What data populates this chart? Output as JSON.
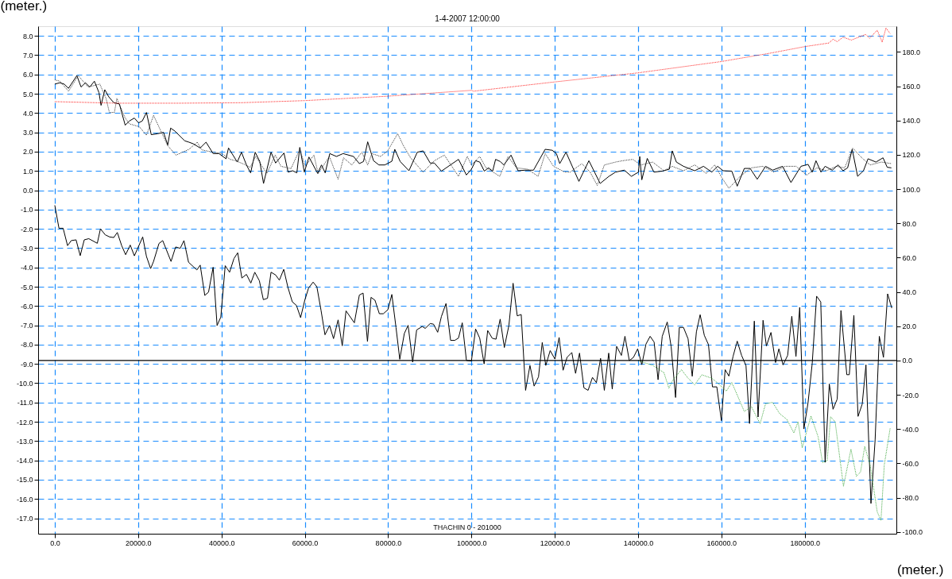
{
  "chart_data": {
    "type": "line",
    "title": "1-4-2007 12:00:00",
    "xlabel": "(meter.)",
    "ylabel": "(meter.)",
    "annotations": [
      "THACHIN 0 - 201000"
    ],
    "xlim": [
      -4000,
      202000
    ],
    "ylim": [
      -17.8,
      8.5
    ],
    "y2lim": [
      -101,
      195
    ],
    "xticks": [
      {
        "value": 0,
        "label": "0.0"
      },
      {
        "value": 20000,
        "label": "20000.0"
      },
      {
        "value": 40000,
        "label": "40000.0"
      },
      {
        "value": 60000,
        "label": "60000.0"
      },
      {
        "value": 80000,
        "label": "80000.0"
      },
      {
        "value": 100000,
        "label": "100000.0"
      },
      {
        "value": 120000,
        "label": "120000.0"
      },
      {
        "value": 140000,
        "label": "140000.0"
      },
      {
        "value": 160000,
        "label": "160000.0"
      },
      {
        "value": 180000,
        "label": "180000.0"
      }
    ],
    "yticks": [
      {
        "value": -17,
        "label": "-17.0"
      },
      {
        "value": -16,
        "label": "-16.0"
      },
      {
        "value": -15,
        "label": "-15.0"
      },
      {
        "value": -14,
        "label": "-14.0"
      },
      {
        "value": -13,
        "label": "-13.0"
      },
      {
        "value": -12,
        "label": "-12.0"
      },
      {
        "value": -11,
        "label": "-11.0"
      },
      {
        "value": -10,
        "label": "-10.0"
      },
      {
        "value": -9,
        "label": "-9.0"
      },
      {
        "value": -8,
        "label": "-8.0"
      },
      {
        "value": -7,
        "label": "-7.0"
      },
      {
        "value": -6,
        "label": "-6.0"
      },
      {
        "value": -5,
        "label": "-5.0"
      },
      {
        "value": -4,
        "label": "-4.0"
      },
      {
        "value": -3,
        "label": "-3.0"
      },
      {
        "value": -2,
        "label": "-2.0"
      },
      {
        "value": -1,
        "label": "-1.0"
      },
      {
        "value": 0,
        "label": "0.0"
      },
      {
        "value": 1,
        "label": "1.0"
      },
      {
        "value": 2,
        "label": "2.0"
      },
      {
        "value": 3,
        "label": "3.0"
      },
      {
        "value": 4,
        "label": "4.0"
      },
      {
        "value": 5,
        "label": "5.0"
      },
      {
        "value": 6,
        "label": "6.0"
      },
      {
        "value": 7,
        "label": "7.0"
      },
      {
        "value": 8,
        "label": "8.0"
      }
    ],
    "y2ticks": [
      {
        "value": -100,
        "label": "-100.0"
      },
      {
        "value": -80,
        "label": "-80.0"
      },
      {
        "value": -60,
        "label": "-60.0"
      },
      {
        "value": -40,
        "label": "-40.0"
      },
      {
        "value": -20,
        "label": "-20.0"
      },
      {
        "value": 0,
        "label": "0.0"
      },
      {
        "value": 20,
        "label": "20.0"
      },
      {
        "value": 40,
        "label": "40.0"
      },
      {
        "value": 60,
        "label": "60.0"
      },
      {
        "value": 80,
        "label": "80.0"
      },
      {
        "value": 100,
        "label": "100.0"
      },
      {
        "value": 120,
        "label": "120.0"
      },
      {
        "value": 140,
        "label": "140.0"
      },
      {
        "value": 160,
        "label": "160.0"
      },
      {
        "value": 180,
        "label": "180.0"
      }
    ],
    "grid": true,
    "ref_lines": [
      {
        "axis": "y2",
        "value": 0,
        "color": "#000000"
      }
    ],
    "series": [
      {
        "color": "#000000",
        "line_style": "solid",
        "x": [
          0,
          1000,
          2000,
          3060,
          3950,
          5100,
          6100,
          7070,
          8160,
          10200,
          10950,
          12100,
          13150,
          14150,
          15000,
          16050,
          17000,
          18100,
          19100,
          21100,
          22000,
          23000,
          23700,
          25000,
          25900,
          27900,
          29000,
          30100,
          31000,
          32100,
          34100,
          34900,
          36000,
          36900,
          38000,
          38950,
          39850,
          40900,
          41950,
          43000,
          43900,
          44900,
          46000,
          47050,
          48000,
          49100,
          50050,
          51050,
          51900,
          53000,
          53900,
          54950,
          55950,
          57000,
          58000,
          59000,
          60000,
          60900,
          62000,
          62900,
          63900,
          64850,
          65950,
          66900,
          68000,
          69000,
          69900,
          71900,
          73100,
          74000,
          75050,
          75900,
          76850,
          77900,
          78850,
          79950,
          80900,
          81900,
          82800,
          83900,
          84800,
          85900,
          86850,
          88200,
          88900,
          90100,
          90900,
          91900,
          92800,
          93900,
          95000,
          96000,
          96900,
          97800,
          98800,
          100000,
          101000,
          102000,
          103050,
          103900,
          105000,
          105900,
          106900,
          107900,
          109000,
          110000,
          111000,
          111950,
          113000,
          114050,
          115050,
          116100,
          117000,
          117850,
          118900,
          120050,
          121050,
          122000,
          122950,
          124100,
          125000,
          125950,
          127000,
          128000,
          129050,
          130000,
          131000,
          131900,
          132950,
          133800,
          134850,
          136000,
          136850,
          137900,
          138900,
          139900,
          140900,
          141900,
          142900,
          143850,
          144800,
          145800,
          147000,
          147950,
          149000,
          149900,
          150900,
          152000,
          153000,
          154000,
          154900,
          155900,
          156900,
          157850,
          158900,
          160000,
          160900,
          161800,
          162800,
          163800,
          164850,
          165900,
          166750,
          167900,
          168800,
          170000,
          170800,
          171900,
          173000,
          173800,
          174800,
          175900,
          176900,
          177900,
          178800,
          179800,
          180800,
          181800,
          182850,
          183850,
          184900,
          185900,
          186800,
          187800,
          188700,
          190100,
          190700,
          191800,
          192800,
          193800,
          194700,
          195900,
          196900,
          197900,
          198900,
          199900,
          200900
        ],
        "values": [
          -0.78,
          -1.97,
          -1.97,
          -2.87,
          -2.61,
          -2.57,
          -3.39,
          -2.57,
          -2.51,
          -2.75,
          -2.0,
          -2.31,
          -2.42,
          -2.45,
          -2.19,
          -2.87,
          -3.34,
          -2.84,
          -3.4,
          -2.42,
          -3.43,
          -4.06,
          -3.69,
          -2.76,
          -2.61,
          -3.69,
          -2.94,
          -3.01,
          -2.61,
          -3.73,
          -4.13,
          -3.88,
          -5.45,
          -5.28,
          -3.99,
          -7.01,
          -6.57,
          -3.91,
          -4.25,
          -3.54,
          -3.24,
          -4.55,
          -4.36,
          -4.81,
          -4.25,
          -4.69,
          -5.67,
          -5.6,
          -4.25,
          -4.39,
          -4.66,
          -4.1,
          -5.03,
          -5.78,
          -5.97,
          -6.6,
          -5.7,
          -5.07,
          -4.76,
          -5.0,
          -6.22,
          -7.49,
          -7.01,
          -7.69,
          -6.72,
          -8.06,
          -6.25,
          -6.87,
          -5.43,
          -5.33,
          -7.84,
          -5.55,
          -5.7,
          -6.4,
          -6.4,
          -6.19,
          -5.4,
          -7.12,
          -8.76,
          -7.42,
          -7.0,
          -8.91,
          -7.24,
          -7.06,
          -7.16,
          -6.91,
          -6.94,
          -7.36,
          -6.54,
          -5.87,
          -7.78,
          -7.78,
          -7.66,
          -6.87,
          -8.82,
          -8.85,
          -7.19,
          -7.67,
          -9.0,
          -7.27,
          -7.67,
          -7.72,
          -6.68,
          -8.15,
          -7.0,
          -4.82,
          -6.51,
          -6.44,
          -10.37,
          -9.08,
          -10.15,
          -9.67,
          -7.89,
          -9.08,
          -8.31,
          -8.75,
          -7.63,
          -9.33,
          -8.66,
          -8.41,
          -9.49,
          -8.44,
          -10.24,
          -10.37,
          -9.7,
          -9.97,
          -8.71,
          -10.37,
          -8.44,
          -10.3,
          -8.09,
          -8.56,
          -7.57,
          -8.83,
          -8.66,
          -8.22,
          -9.04,
          -7.97,
          -7.57,
          -7.87,
          -9.82,
          -7.57,
          -6.83,
          -8.12,
          -10.74,
          -7.11,
          -7.11,
          -7.7,
          -9.64,
          -7.34,
          -6.45,
          -7.52,
          -8.0,
          -10.19,
          -10.19,
          -11.94,
          -9.3,
          -9.63,
          -8.61,
          -7.82,
          -8.56,
          -9.08,
          -12.09,
          -6.78,
          -11.75,
          -6.74,
          -8.07,
          -7.37,
          -8.93,
          -8.22,
          -9.05,
          -8.56,
          -6.53,
          -8.61,
          -6.07,
          -12.37,
          -11.01,
          -8.97,
          -5.49,
          -5.79,
          -14.1,
          -10.04,
          -11.35,
          -10.82,
          -6.23,
          -9.56,
          -9.56,
          -6.48,
          -11.72,
          -11.08,
          -9.05,
          -16.23,
          -12.94,
          -7.57,
          -8.66,
          -5.37,
          -6.11
        ]
      },
      {
        "color": "#000000",
        "line_style": "solid",
        "x": [
          0,
          1200,
          2250,
          3270,
          5300,
          6300,
          7350,
          8400,
          9500,
          10600,
          11100,
          12000,
          12950,
          14150,
          15500,
          16900,
          17900,
          19100,
          20100,
          21000,
          22000,
          23150,
          24700,
          26100,
          27100,
          27800,
          28800,
          31200,
          32200,
          33200,
          34900,
          36300,
          38000,
          39400,
          41100,
          41700,
          43800,
          44800,
          46000,
          47000,
          48100,
          49200,
          50100,
          51900,
          53000,
          55000,
          56000,
          57100,
          58100,
          58800,
          59900,
          61000,
          63100,
          64000,
          64900,
          66000,
          67600,
          69200,
          71700,
          73100,
          74100,
          75100,
          76500,
          77800,
          79200,
          80900,
          81600,
          82900,
          85000,
          87000,
          88400,
          90100,
          91100,
          92800,
          96900,
          98800,
          100000,
          101000,
          102000,
          103100,
          104100,
          105100,
          105800,
          106900,
          107800,
          109500,
          111200,
          112900,
          114900,
          117700,
          119400,
          120400,
          121200,
          122700,
          125800,
          128200,
          130900,
          133000,
          134600,
          136700,
          138400,
          140100,
          140400,
          140900,
          142200,
          143800,
          145800,
          147500,
          148200,
          149200,
          150900,
          153600,
          155700,
          157700,
          159100,
          160400,
          162500,
          163800,
          165500,
          166900,
          168600,
          170600,
          172300,
          174700,
          176700,
          179100,
          180800,
          181800,
          182700,
          183900,
          184900,
          186600,
          188000,
          189200,
          190300,
          191400,
          192700,
          194100,
          195200,
          197100,
          198800,
          199800,
          200800
        ],
        "values": [
          5.5,
          5.57,
          5.5,
          5.28,
          5.94,
          5.35,
          5.57,
          5.35,
          5.65,
          5.06,
          4.4,
          5.21,
          4.84,
          4.54,
          4.47,
          3.37,
          3.59,
          3.74,
          3.49,
          3.59,
          4.03,
          2.88,
          2.93,
          3.0,
          2.34,
          3.22,
          3.07,
          2.56,
          2.49,
          2.41,
          2.19,
          2.49,
          1.9,
          1.9,
          1.63,
          2.19,
          1.46,
          1.97,
          1.31,
          0.9,
          1.97,
          1.49,
          0.35,
          1.97,
          1.41,
          1.93,
          0.94,
          1.01,
          0.9,
          2.22,
          0.94,
          1.72,
          0.87,
          1.31,
          0.9,
          1.9,
          1.75,
          1.9,
          1.75,
          1.38,
          1.49,
          2.51,
          1.53,
          1.31,
          1.31,
          1.5,
          2.12,
          1.49,
          1.01,
          1.97,
          2.04,
          1.41,
          1.41,
          0.99,
          1.6,
          0.79,
          1.09,
          1.53,
          1.46,
          0.99,
          1.16,
          0.99,
          1.6,
          1.49,
          1.31,
          1.82,
          1.01,
          1.04,
          1.04,
          2.12,
          2.07,
          1.9,
          1.38,
          1.97,
          0.46,
          1.53,
          0.35,
          0.72,
          0.94,
          1.04,
          0.72,
          0.94,
          1.75,
          0.54,
          1.65,
          0.94,
          0.99,
          1.09,
          2.04,
          1.46,
          1.24,
          1.01,
          1.24,
          0.94,
          1.24,
          1.01,
          0.99,
          0.21,
          1.13,
          1.13,
          0.57,
          1.24,
          1.04,
          1.24,
          0.4,
          1.24,
          1.34,
          0.94,
          1.53,
          0.94,
          1.24,
          1.04,
          1.31,
          1.01,
          1.16,
          2.12,
          0.72,
          1.01,
          1.63,
          1.46,
          1.68,
          1.19,
          1.16
        ]
      },
      {
        "color": "#333333",
        "line_style": "dotted",
        "x": [
          0,
          1200,
          3300,
          5600,
          8000,
          10800,
          12300,
          13100,
          14300,
          14900,
          16900,
          17900,
          20300,
          22000,
          23700,
          27100,
          29100,
          32200,
          34200,
          35300,
          38000,
          40100,
          42100,
          43400,
          45500,
          46900,
          48200,
          50900,
          52900,
          54300,
          56700,
          58800,
          60100,
          62200,
          63200,
          65900,
          68000,
          69300,
          71300,
          73700,
          75100,
          76100,
          78200,
          79900,
          82300,
          83600,
          85400,
          88400,
          91100,
          93500,
          96900,
          99000,
          100000,
          102000,
          103400,
          106800,
          108800,
          110800,
          113500,
          116000,
          117700,
          119700,
          122400,
          123700,
          126500,
          128500,
          130200,
          131900,
          134600,
          136300,
          138700,
          140700,
          143500,
          146200,
          148200,
          150900,
          153600,
          156400,
          158400,
          160100,
          161800,
          164500,
          167200,
          169900,
          172600,
          175300,
          177900,
          180500,
          182900,
          185200,
          187600,
          189600,
          191500,
          193700,
          195700,
          198400,
          200800
        ],
        "values": [
          5.72,
          5.65,
          5.13,
          5.94,
          5.35,
          5.5,
          4.76,
          4.03,
          4.03,
          4.76,
          3.74,
          3.44,
          3.29,
          2.85,
          3.88,
          2.31,
          1.82,
          2.12,
          2.49,
          2.09,
          1.97,
          1.9,
          1.6,
          1.53,
          1.34,
          1.19,
          1.75,
          0.87,
          1.82,
          1.24,
          1.12,
          2.12,
          1.24,
          1.82,
          0.87,
          1.75,
          0.57,
          1.68,
          1.31,
          1.97,
          1.31,
          1.9,
          1.75,
          2.04,
          2.93,
          2.34,
          1.68,
          0.94,
          1.53,
          1.82,
          0.72,
          1.75,
          1.31,
          1.75,
          1.19,
          0.72,
          1.75,
          1.16,
          1.09,
          0.72,
          1.9,
          1.24,
          0.94,
          0.94,
          1.38,
          0.94,
          0.25,
          1.31,
          1.46,
          1.53,
          1.6,
          1.31,
          1.46,
          1.01,
          1.24,
          1.01,
          1.31,
          0.87,
          1.31,
          0.65,
          0.1,
          0.72,
          1.16,
          1.24,
          0.94,
          1.24,
          1.24,
          0.79,
          1.16,
          1.01,
          1.24,
          1.16,
          2.19,
          1.68,
          1.31,
          1.46,
          1.38
        ]
      },
      {
        "color": "#ff2020",
        "line_style": "dotted",
        "axis": "y2",
        "x": [
          0,
          15000,
          30000,
          45000,
          60000,
          80000,
          100000,
          100500,
          120000,
          140000,
          160000,
          172000,
          180000,
          185800,
          186800,
          187800,
          189200,
          191200,
          194600,
          195600,
          197400,
          198600,
          199500,
          200500
        ],
        "values": [
          151,
          150.1,
          150.1,
          150.4,
          151.6,
          154.2,
          157.6,
          157.1,
          162.5,
          167.8,
          174.4,
          179.4,
          183.1,
          185.2,
          187.4,
          186,
          188.6,
          186.9,
          190.2,
          188,
          192.7,
          185.7,
          194,
          190.7
        ]
      },
      {
        "color": "#44aa44",
        "line_style": "dotted",
        "axis": "y2",
        "x": [
          140000,
          143500,
          146200,
          147400,
          148200,
          150400,
          152000,
          153600,
          155300,
          157700,
          159100,
          161200,
          162500,
          165500,
          167200,
          169300,
          170600,
          172300,
          174000,
          175700,
          177400,
          178400,
          179400,
          181500,
          183200,
          184300,
          185400,
          186200,
          187300,
          189300,
          191100,
          192400,
          193400,
          194400,
          195700,
          197400,
          198300,
          199100,
          200500
        ],
        "values": [
          0,
          -2.8,
          -7,
          -16.1,
          -12,
          -5.3,
          -10.3,
          -14.1,
          -8.3,
          -10.3,
          -13.1,
          -17.8,
          -12.8,
          -29.7,
          -26.9,
          -36.8,
          -25.2,
          -24.4,
          -31,
          -34.3,
          -42.2,
          -35.7,
          -50.9,
          -32.3,
          -44.3,
          -59.5,
          -58.4,
          -32.7,
          -35.7,
          -73.3,
          -51.7,
          -67.5,
          -65,
          -50.1,
          -60.8,
          -88.2,
          -93.2,
          -60.8,
          -39.6
        ]
      }
    ]
  }
}
